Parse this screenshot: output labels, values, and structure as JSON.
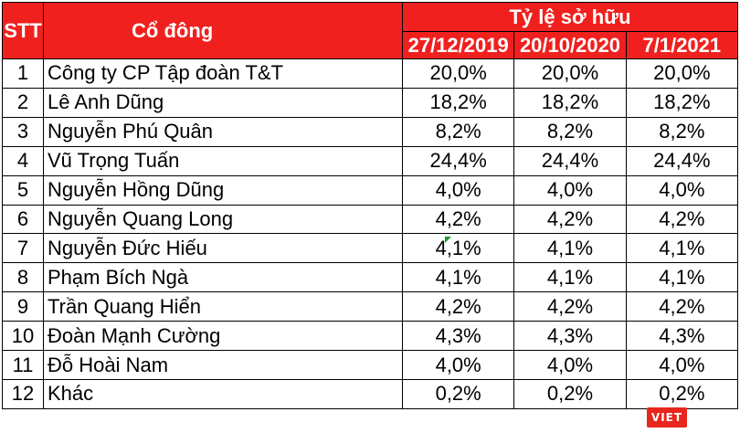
{
  "header": {
    "stt": "STT",
    "shareholder": "Cổ đông",
    "ownership": "Tỷ lệ sở hữu",
    "dates": [
      "27/12/2019",
      "20/10/2020",
      "7/1/2021"
    ]
  },
  "rows": [
    {
      "stt": "1",
      "name": "Công ty CP Tập đoàn T&T",
      "v": [
        "20,0%",
        "20,0%",
        "20,0%"
      ]
    },
    {
      "stt": "2",
      "name": "Lê Anh Dũng",
      "v": [
        "18,2%",
        "18,2%",
        "18,2%"
      ]
    },
    {
      "stt": "3",
      "name": "Nguyễn Phú Quân",
      "v": [
        "8,2%",
        "8,2%",
        "8,2%"
      ]
    },
    {
      "stt": "4",
      "name": "Vũ Trọng Tuấn",
      "v": [
        "24,4%",
        "24,4%",
        "24,4%"
      ]
    },
    {
      "stt": "5",
      "name": "Nguyễn Hồng Dũng",
      "v": [
        "4,0%",
        "4,0%",
        "4,0%"
      ]
    },
    {
      "stt": "6",
      "name": "Nguyễn Quang Long",
      "v": [
        "4,2%",
        "4,2%",
        "4,2%"
      ]
    },
    {
      "stt": "7",
      "name": "Nguyễn Đức Hiếu",
      "v": [
        "4,1%",
        "4,1%",
        "4,1%"
      ]
    },
    {
      "stt": "8",
      "name": "Phạm Bích Ngà",
      "v": [
        "4,1%",
        "4,1%",
        "4,1%"
      ]
    },
    {
      "stt": "9",
      "name": "Trần Quang Hiển",
      "v": [
        "4,2%",
        "4,2%",
        "4,2%"
      ]
    },
    {
      "stt": "10",
      "name": "Đoàn Mạnh Cường",
      "v": [
        "4,3%",
        "4,3%",
        "4,3%"
      ]
    },
    {
      "stt": "11",
      "name": "Đỗ Hoài Nam",
      "v": [
        "4,0%",
        "4,0%",
        "4,0%"
      ]
    },
    {
      "stt": "12",
      "name": "Khác",
      "v": [
        "0,2%",
        "0,2%",
        "0,2%"
      ]
    }
  ],
  "logo": {
    "text": "VIET"
  }
}
